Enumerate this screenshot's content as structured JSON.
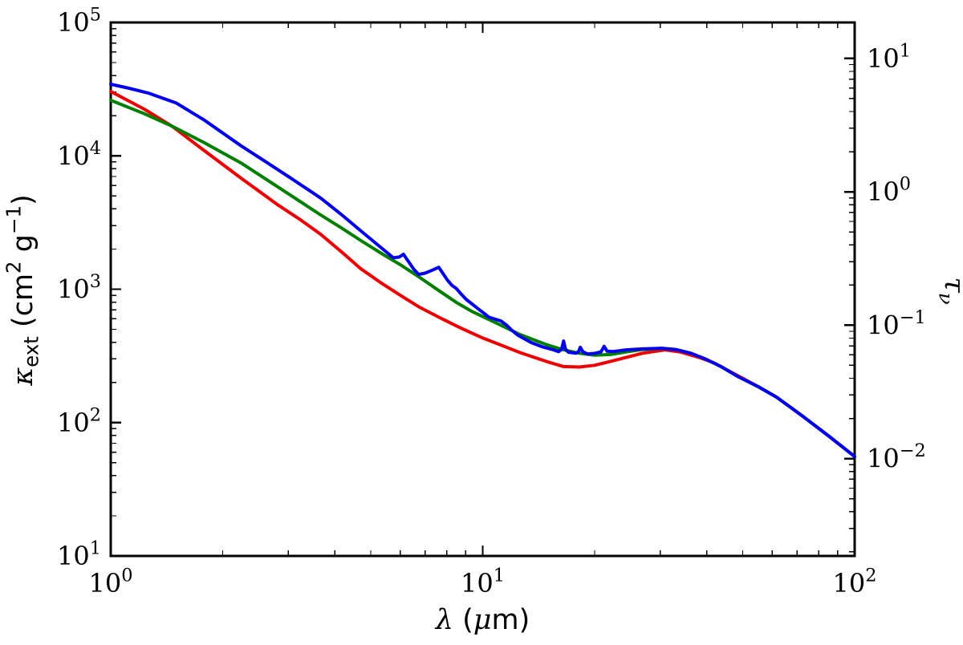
{
  "figure": {
    "background": "#ffffff",
    "frame_color": "#000000",
    "tick_color": "#000000",
    "text_color": "#000000"
  },
  "chart_data": {
    "type": "line",
    "title": "",
    "x_scale": "log",
    "y_scale": "log",
    "xlim": [
      1,
      100
    ],
    "ylim_left": [
      10,
      100000
    ],
    "xlabel": "λ (μm)",
    "ylabel_left": "κ_{ext} (cm^{2} g^{−1})",
    "ylabel_right": "τ_{ν}",
    "x_ticks": {
      "values": [
        1,
        10,
        100
      ],
      "labels": [
        "10^{0}",
        "10^{1}",
        "10^{2}"
      ]
    },
    "y_ticks_left": {
      "values": [
        100000,
        10000,
        1000,
        100,
        10
      ],
      "labels": [
        "10^{5}",
        "10^{4}",
        "10^{3}",
        "10^{2}",
        "10^{1}"
      ]
    },
    "y_ticks_right": {
      "values": [
        10,
        1,
        0.1,
        0.01
      ],
      "labels": [
        "10^{1}",
        "10^{0}",
        "10^{−1}",
        "10^{−2}"
      ]
    },
    "right_axis_offset_decades": 3.73,
    "grid": false,
    "legend": null,
    "series": [
      {
        "name": "red-curve",
        "color": "#ee0000",
        "points": [
          [
            1.0,
            30400
          ],
          [
            1.23,
            22400
          ],
          [
            1.46,
            16700
          ],
          [
            1.78,
            11000
          ],
          [
            2.24,
            6810
          ],
          [
            2.82,
            4270
          ],
          [
            3.24,
            3310
          ],
          [
            3.67,
            2580
          ],
          [
            4.17,
            1910
          ],
          [
            4.71,
            1420
          ],
          [
            5.37,
            1100
          ],
          [
            6.04,
            891
          ],
          [
            6.76,
            733
          ],
          [
            7.62,
            617
          ],
          [
            8.71,
            513
          ],
          [
            10.0,
            431
          ],
          [
            11.0,
            389
          ],
          [
            12.6,
            335
          ],
          [
            14.8,
            288
          ],
          [
            16.5,
            263
          ],
          [
            18.2,
            261
          ],
          [
            20.0,
            269
          ],
          [
            22.9,
            295
          ],
          [
            26.9,
            331
          ],
          [
            30.9,
            351
          ],
          [
            33.9,
            339
          ],
          [
            38.0,
            309
          ],
          [
            41.7,
            282
          ],
          [
            48.6,
            224
          ],
          [
            55.0,
            186
          ],
          [
            61.7,
            155
          ],
          [
            72.4,
            112
          ],
          [
            85.1,
            79.4
          ],
          [
            100,
            55.6
          ]
        ]
      },
      {
        "name": "green-curve",
        "color": "#007f00",
        "points": [
          [
            1.0,
            26100
          ],
          [
            1.23,
            20700
          ],
          [
            1.46,
            16700
          ],
          [
            1.78,
            12600
          ],
          [
            2.24,
            8850
          ],
          [
            2.82,
            5820
          ],
          [
            3.24,
            4520
          ],
          [
            3.67,
            3600
          ],
          [
            4.17,
            2880
          ],
          [
            4.71,
            2310
          ],
          [
            5.37,
            1840
          ],
          [
            6.04,
            1510
          ],
          [
            6.76,
            1230
          ],
          [
            7.62,
            977
          ],
          [
            8.51,
            794
          ],
          [
            9.33,
            684
          ],
          [
            11.0,
            550
          ],
          [
            12.6,
            457
          ],
          [
            14.8,
            385
          ],
          [
            16.5,
            351
          ],
          [
            18.2,
            331
          ],
          [
            20.0,
            320
          ],
          [
            22.1,
            324
          ],
          [
            24.3,
            339
          ],
          [
            26.9,
            353
          ],
          [
            30.3,
            361
          ],
          [
            33.1,
            353
          ],
          [
            36.3,
            331
          ],
          [
            39.8,
            299
          ],
          [
            43.7,
            263
          ],
          [
            48.6,
            221
          ],
          [
            55.0,
            186
          ],
          [
            61.7,
            155
          ],
          [
            72.4,
            112
          ],
          [
            85.1,
            79.4
          ],
          [
            100,
            55.6
          ]
        ]
      },
      {
        "name": "blue-curve",
        "color": "#0000ee",
        "points": [
          [
            1.0,
            34400
          ],
          [
            1.12,
            32100
          ],
          [
            1.26,
            29600
          ],
          [
            1.5,
            24900
          ],
          [
            1.78,
            18600
          ],
          [
            2.24,
            11900
          ],
          [
            2.63,
            8910
          ],
          [
            3.02,
            6920
          ],
          [
            3.67,
            4820
          ],
          [
            4.17,
            3630
          ],
          [
            4.71,
            2730
          ],
          [
            5.47,
            1930
          ],
          [
            5.75,
            1720
          ],
          [
            5.96,
            1740
          ],
          [
            6.12,
            1830
          ],
          [
            6.31,
            1620
          ],
          [
            6.53,
            1410
          ],
          [
            6.73,
            1290
          ],
          [
            7.0,
            1320
          ],
          [
            7.28,
            1380
          ],
          [
            7.62,
            1460
          ],
          [
            7.85,
            1290
          ],
          [
            8.04,
            1170
          ],
          [
            8.26,
            1070
          ],
          [
            8.47,
            1020
          ],
          [
            8.71,
            933
          ],
          [
            9.02,
            841
          ],
          [
            9.55,
            741
          ],
          [
            10.4,
            617
          ],
          [
            10.9,
            592
          ],
          [
            11.2,
            578
          ],
          [
            11.6,
            537
          ],
          [
            12.0,
            490
          ],
          [
            12.4,
            454
          ],
          [
            13.5,
            398
          ],
          [
            14.5,
            369
          ],
          [
            15.5,
            351
          ],
          [
            16.0,
            340
          ],
          [
            16.3,
            355
          ],
          [
            16.5,
            409
          ],
          [
            16.7,
            355
          ],
          [
            17.0,
            337
          ],
          [
            17.8,
            331
          ],
          [
            18.1,
            340
          ],
          [
            18.3,
            367
          ],
          [
            18.6,
            340
          ],
          [
            19.1,
            327
          ],
          [
            20.0,
            330
          ],
          [
            20.8,
            339
          ],
          [
            21.2,
            373
          ],
          [
            21.6,
            343
          ],
          [
            22.4,
            341
          ],
          [
            24.3,
            351
          ],
          [
            26.9,
            357
          ],
          [
            30.3,
            361
          ],
          [
            33.1,
            353
          ],
          [
            36.3,
            331
          ],
          [
            39.8,
            299
          ],
          [
            43.7,
            263
          ],
          [
            48.6,
            221
          ],
          [
            55.0,
            186
          ],
          [
            61.7,
            155
          ],
          [
            72.4,
            112
          ],
          [
            85.1,
            79.4
          ],
          [
            100,
            55.6
          ]
        ]
      }
    ]
  }
}
